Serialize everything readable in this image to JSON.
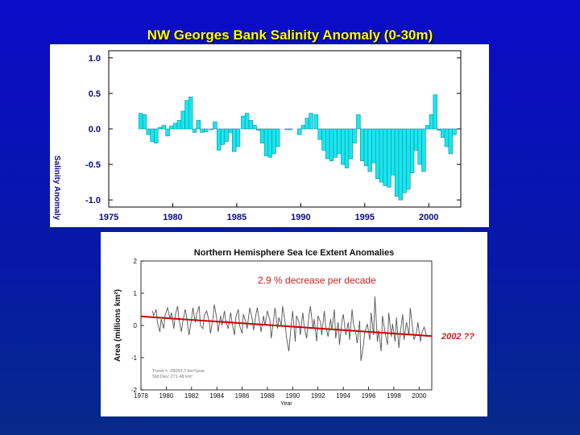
{
  "slide": {
    "title": "NW Georges Bank Salinity Anomaly (0-30m)",
    "callout": "2002 ??"
  },
  "chart_data": [
    {
      "type": "bar",
      "title": "",
      "xlabel": "",
      "ylabel": "Salinity Anomaly",
      "xlim": [
        1975,
        2002.5
      ],
      "ylim": [
        -1.1,
        1.1
      ],
      "xticks": [
        1975,
        1980,
        1985,
        1990,
        1995,
        2000
      ],
      "yticks": [
        1.0,
        0.5,
        0.0,
        -0.5,
        -1.0
      ],
      "ytick_labels": [
        "1.0",
        "0.5",
        "0.0",
        "-0.5",
        "-1.0"
      ],
      "bar_color": "#19e6f0",
      "x": [
        1977.5,
        1977.8,
        1978.1,
        1978.4,
        1978.7,
        1979.0,
        1979.3,
        1979.6,
        1979.9,
        1980.2,
        1980.5,
        1980.8,
        1981.1,
        1981.4,
        1981.7,
        1982.0,
        1982.3,
        1982.6,
        1983.0,
        1983.3,
        1983.6,
        1983.9,
        1984.2,
        1984.5,
        1984.8,
        1985.1,
        1985.5,
        1985.8,
        1986.1,
        1986.4,
        1986.7,
        1987.0,
        1987.3,
        1987.6,
        1987.9,
        1988.2,
        1988.9,
        1989.2,
        1989.9,
        1990.2,
        1990.5,
        1990.8,
        1991.2,
        1991.5,
        1991.8,
        1992.1,
        1992.4,
        1992.7,
        1993.0,
        1993.3,
        1993.6,
        1993.9,
        1994.2,
        1994.5,
        1994.8,
        1995.1,
        1995.4,
        1995.7,
        1996.0,
        1996.3,
        1996.6,
        1996.9,
        1997.2,
        1997.5,
        1997.8,
        1998.1,
        1998.4,
        1998.7,
        1999.0,
        1999.3,
        1999.6,
        1999.9,
        2000.2,
        2000.5,
        2000.8,
        2001.1,
        2001.4,
        2001.7,
        2002.0
      ],
      "values": [
        0.22,
        0.2,
        -0.08,
        -0.18,
        -0.2,
        0.02,
        0.05,
        -0.1,
        0.04,
        0.08,
        0.12,
        0.25,
        0.4,
        0.45,
        -0.05,
        0.12,
        -0.05,
        -0.04,
        0.0,
        0.1,
        -0.3,
        -0.22,
        -0.18,
        -0.05,
        -0.32,
        -0.25,
        0.18,
        0.22,
        0.12,
        0.05,
        -0.02,
        -0.2,
        -0.38,
        -0.4,
        -0.35,
        -0.25,
        0.0,
        0.0,
        -0.08,
        0.05,
        0.15,
        0.22,
        0.2,
        -0.15,
        -0.3,
        -0.42,
        -0.45,
        -0.4,
        -0.35,
        -0.5,
        -0.55,
        -0.42,
        -0.2,
        0.2,
        -0.45,
        -0.52,
        -0.6,
        -0.48,
        -0.7,
        -0.75,
        -0.8,
        -0.82,
        -0.65,
        -0.95,
        -1.0,
        -0.9,
        -0.85,
        -0.62,
        -0.3,
        -0.5,
        -0.6,
        0.05,
        0.2,
        0.48,
        -0.02,
        -0.12,
        -0.25,
        -0.35,
        -0.08
      ]
    },
    {
      "type": "line",
      "title": "Northern Hemisphere Sea Ice Extent Anomalies",
      "xlabel": "Year",
      "ylabel": "Area  (millions km²)",
      "xlim": [
        1978,
        2001
      ],
      "ylim": [
        -2,
        2
      ],
      "xticks": [
        1978,
        1980,
        1982,
        1984,
        1986,
        1988,
        1990,
        1992,
        1994,
        1996,
        1998,
        2000
      ],
      "yticks": [
        2,
        1,
        0,
        -1,
        -2
      ],
      "annotation": "2.9 % decrease per decade",
      "stats_lines": [
        "Trend = -35053.7 km²/year",
        "Std Dev: 271.48 km²"
      ],
      "series": [
        {
          "name": "",
          "color": "#555555",
          "x": [
            1978.9,
            1979.0,
            1979.2,
            1979.3,
            1979.5,
            1979.6,
            1979.8,
            1979.9,
            1980.1,
            1980.3,
            1980.4,
            1980.6,
            1980.7,
            1980.9,
            1981.0,
            1981.2,
            1981.3,
            1981.5,
            1981.6,
            1981.8,
            1982.0,
            1982.1,
            1982.3,
            1982.4,
            1982.6,
            1982.7,
            1982.9,
            1983.0,
            1983.2,
            1983.4,
            1983.5,
            1983.7,
            1983.8,
            1984.0,
            1984.1,
            1984.3,
            1984.4,
            1984.6,
            1984.7,
            1984.9,
            1985.1,
            1985.2,
            1985.4,
            1985.5,
            1985.7,
            1985.8,
            1986.0,
            1986.1,
            1986.3,
            1986.4,
            1986.6,
            1986.8,
            1986.9,
            1987.1,
            1987.2,
            1987.4,
            1987.5,
            1987.7,
            1987.8,
            1988.0,
            1988.2,
            1988.3,
            1988.5,
            1988.6,
            1988.8,
            1988.9,
            1989.1,
            1989.2,
            1989.4,
            1989.5,
            1989.7,
            1989.9,
            1990.0,
            1990.2,
            1990.3,
            1990.5,
            1990.6,
            1990.8,
            1990.9,
            1991.1,
            1991.3,
            1991.4,
            1991.6,
            1991.7,
            1991.9,
            1992.0,
            1992.2,
            1992.3,
            1992.5,
            1992.6,
            1992.8,
            1993.0,
            1993.1,
            1993.3,
            1993.4,
            1993.6,
            1993.7,
            1993.9,
            1994.0,
            1994.2,
            1994.4,
            1994.5,
            1994.7,
            1994.8,
            1995.0,
            1995.1,
            1995.3,
            1995.4,
            1995.6,
            1995.7,
            1995.9,
            1996.1,
            1996.2,
            1996.4,
            1996.5,
            1996.7,
            1996.8,
            1997.0,
            1997.1,
            1997.3,
            1997.5,
            1997.6,
            1997.8,
            1997.9,
            1998.1,
            1998.2,
            1998.4,
            1998.5,
            1998.7,
            1998.8,
            1999.0,
            1999.2,
            1999.3,
            1999.5,
            1999.6,
            1999.8,
            1999.9,
            2000.1,
            2000.2,
            2000.4,
            2000.6
          ],
          "y": [
            0.45,
            0.3,
            0.5,
            0.1,
            -0.2,
            0.2,
            -0.1,
            0.3,
            0.55,
            0.2,
            0.4,
            -0.1,
            0.3,
            0.6,
            0.2,
            -0.2,
            0.1,
            0.5,
            0.3,
            -0.3,
            0.2,
            0.55,
            0.1,
            0.35,
            0.6,
            0.0,
            -0.1,
            0.3,
            0.45,
            0.1,
            -0.25,
            0.25,
            0.65,
            0.2,
            -0.2,
            0.3,
            0.0,
            0.45,
            0.15,
            -0.1,
            0.4,
            0.1,
            -0.3,
            0.25,
            0.5,
            0.0,
            -0.25,
            0.35,
            0.1,
            -0.1,
            0.55,
            0.2,
            -0.15,
            0.35,
            0.55,
            0.05,
            -0.2,
            0.3,
            0.0,
            0.45,
            0.15,
            -0.4,
            0.2,
            0.55,
            -0.1,
            0.25,
            0.0,
            0.6,
            0.1,
            -0.35,
            -0.8,
            0.1,
            0.45,
            -0.5,
            0.3,
            0.1,
            -0.3,
            0.4,
            0.0,
            -0.4,
            0.35,
            0.6,
            -0.1,
            0.2,
            -0.5,
            0.3,
            0.1,
            -0.3,
            0.45,
            0.0,
            -0.35,
            0.2,
            -0.15,
            0.5,
            -0.4,
            0.1,
            -0.6,
            0.15,
            0.35,
            -0.3,
            0.1,
            -0.45,
            0.5,
            0.05,
            -0.25,
            -0.55,
            0.15,
            -1.1,
            -0.6,
            -0.2,
            0.05,
            -0.45,
            0.4,
            -0.3,
            0.9,
            -0.5,
            -0.15,
            -0.8,
            0.3,
            -0.2,
            -0.6,
            0.4,
            -0.35,
            0.05,
            -0.5,
            0.25,
            -0.7,
            -0.25,
            0.35,
            -0.45,
            0.1,
            -0.3,
            0.55,
            -0.15,
            -0.45,
            -0.2,
            0.1,
            -0.5,
            -0.25,
            -0.05,
            -0.35
          ]
        },
        {
          "name": "",
          "color": "#cc0000",
          "x": [
            1978,
            2001
          ],
          "y": [
            0.28,
            -0.33
          ]
        }
      ]
    }
  ]
}
